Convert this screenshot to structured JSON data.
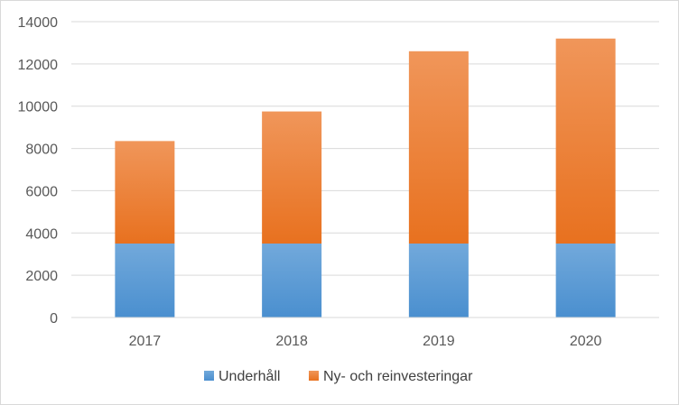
{
  "chart_data": {
    "type": "bar",
    "stacked": true,
    "categories": [
      "2017",
      "2018",
      "2019",
      "2020"
    ],
    "series": [
      {
        "name": "Underhåll",
        "values": [
          3500,
          3500,
          3500,
          3500
        ],
        "color": "#5b9bd5"
      },
      {
        "name": "Ny- och reinvesteringar",
        "values": [
          4850,
          6250,
          9100,
          9700
        ],
        "color": "#ed7d31"
      }
    ],
    "ylim": [
      0,
      14000
    ],
    "yticks": [
      "0",
      "2000",
      "4000",
      "6000",
      "8000",
      "10000",
      "12000",
      "14000"
    ],
    "grid": true,
    "legend_position": "bottom"
  }
}
